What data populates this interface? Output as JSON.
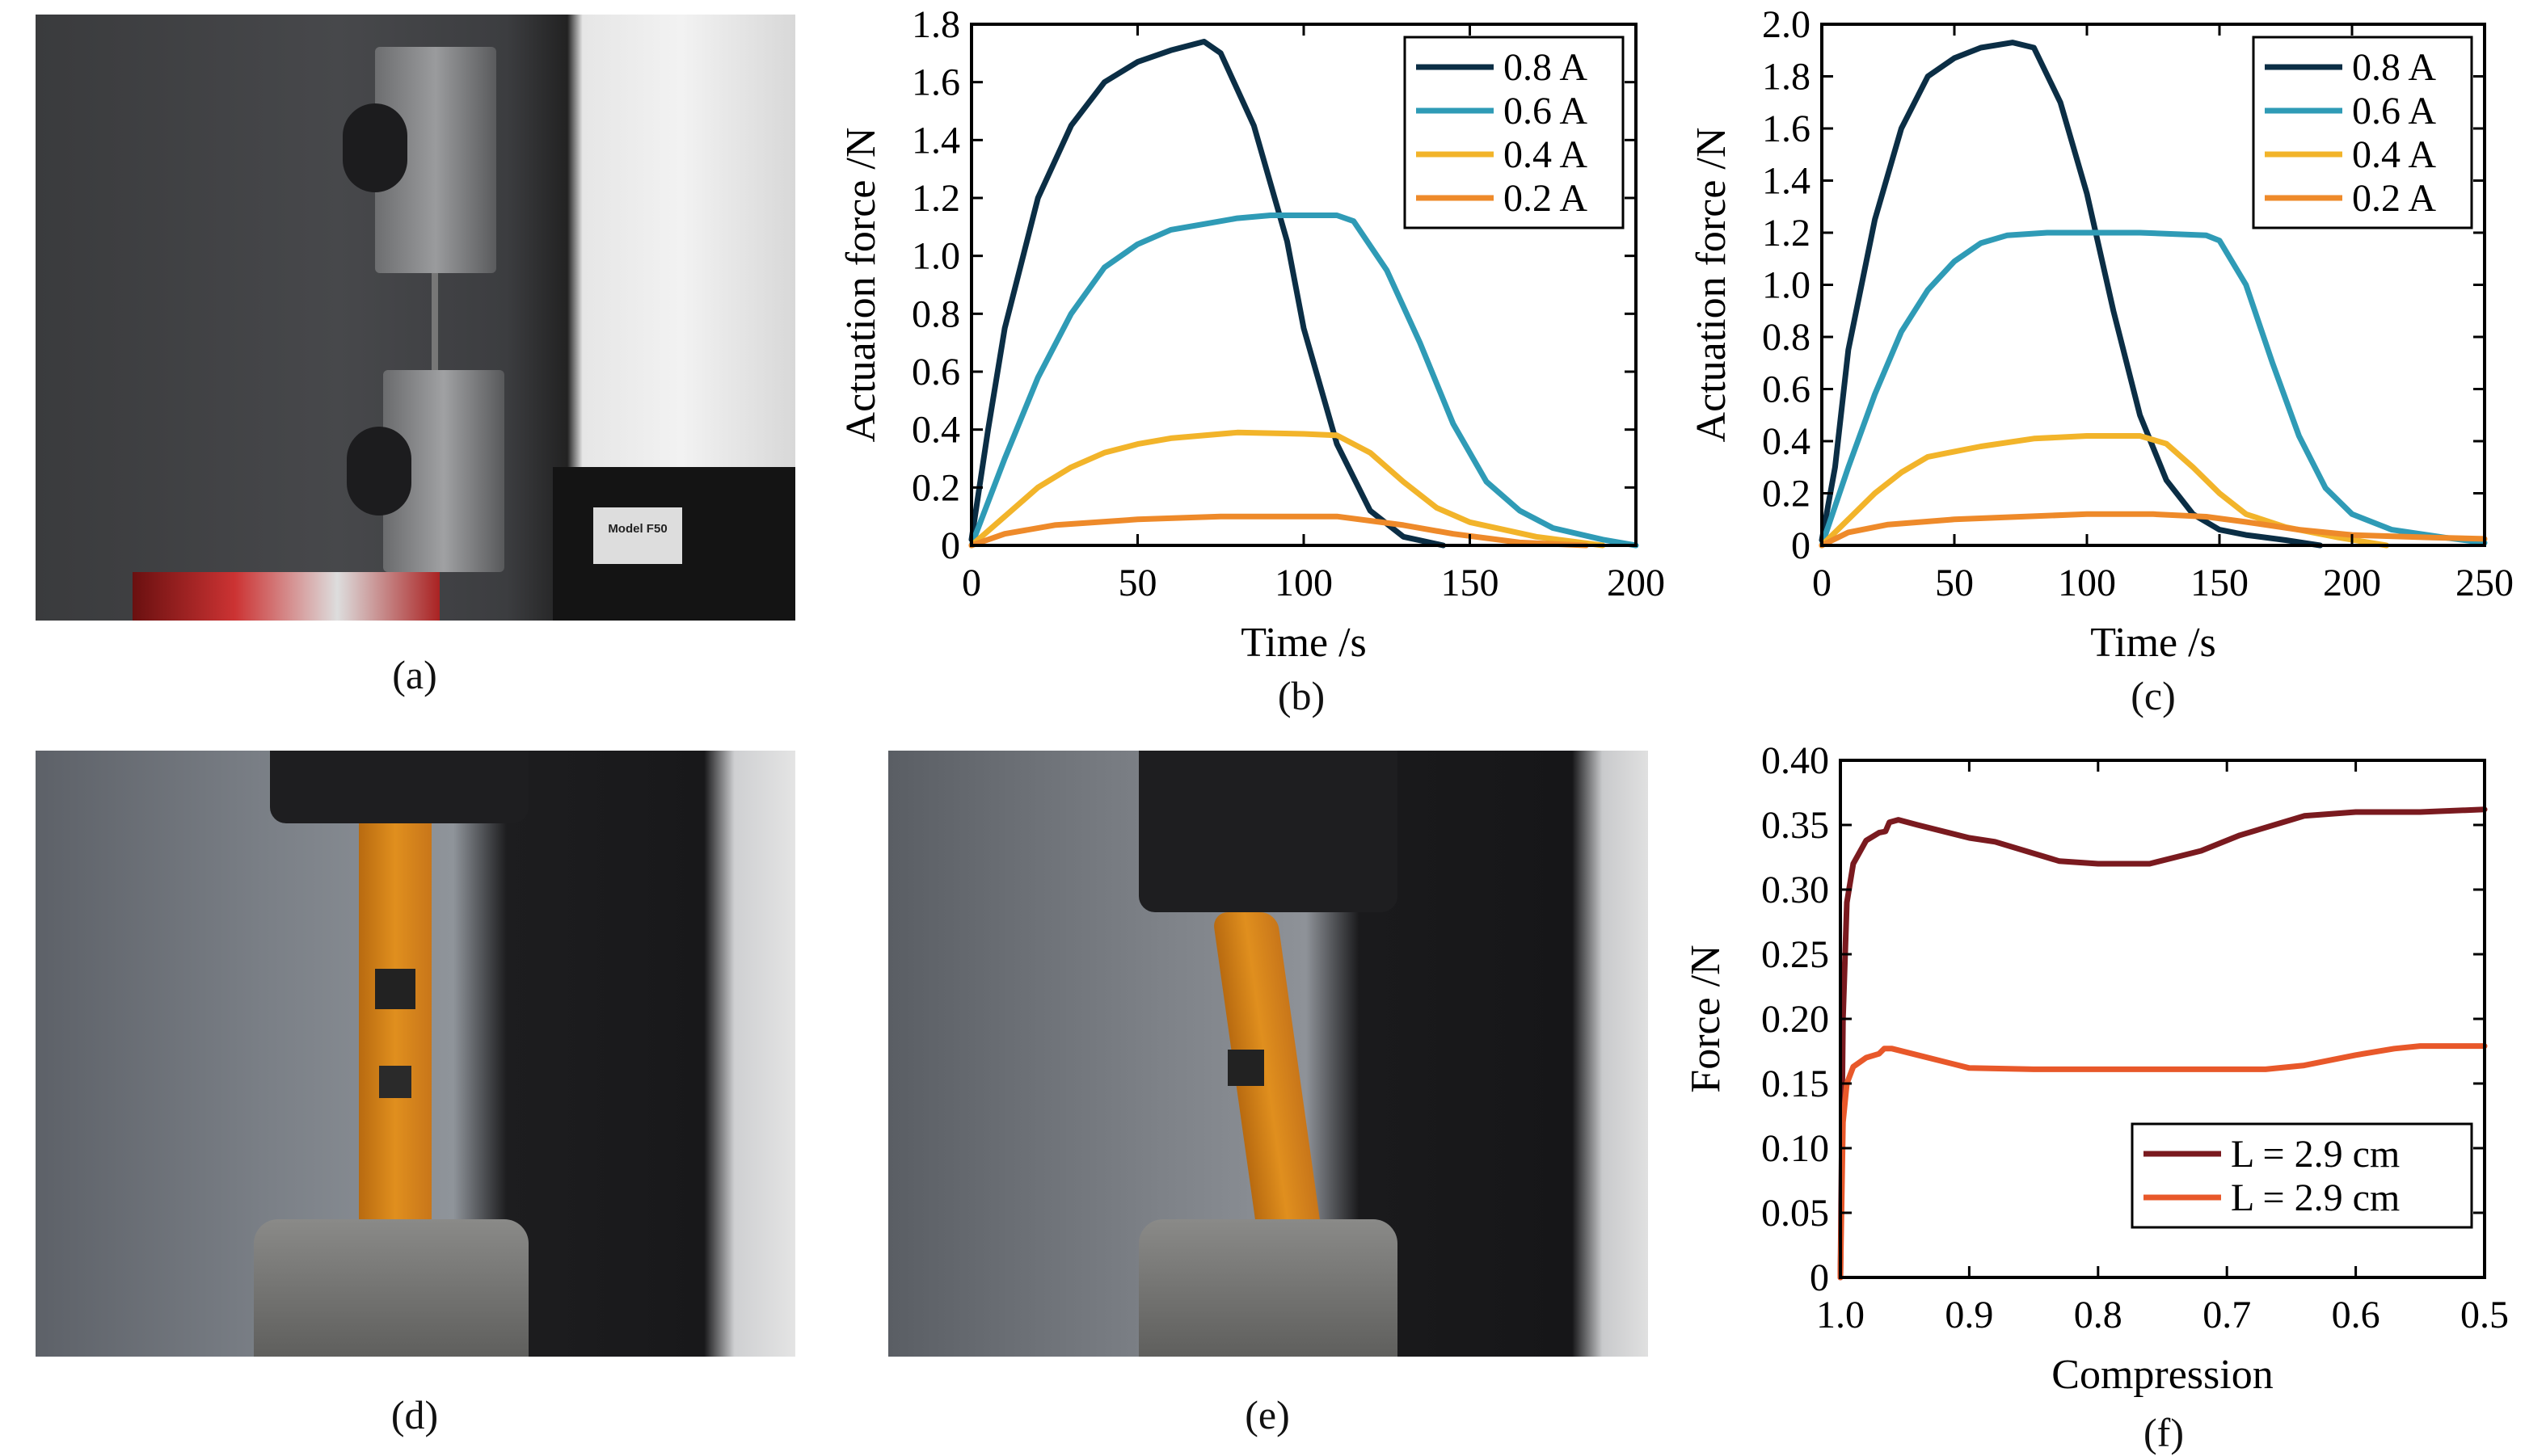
{
  "captions": {
    "a": "(a)",
    "b": "(b)",
    "c": "(c)",
    "d": "(d)",
    "e": "(e)",
    "f": "(f)"
  },
  "photos": {
    "a": {
      "label_plate": "Model F50"
    },
    "d": {},
    "e": {}
  },
  "chart_data": [
    {
      "id": "b",
      "type": "line",
      "xlabel": "Time /s",
      "ylabel": "Actuation force /N",
      "xlim": [
        0,
        200
      ],
      "ylim": [
        0,
        1.8
      ],
      "xticks": [
        "0",
        "50",
        "100",
        "150",
        "200"
      ],
      "xtick_values": [
        0,
        50,
        100,
        150,
        200
      ],
      "yticks": [
        "0",
        "0.2",
        "0.4",
        "0.6",
        "0.8",
        "1.0",
        "1.2",
        "1.4",
        "1.6",
        "1.8"
      ],
      "ytick_values": [
        0,
        0.2,
        0.4,
        0.6,
        0.8,
        1.0,
        1.2,
        1.4,
        1.6,
        1.8
      ],
      "legend": "top-right",
      "series": [
        {
          "name": "0.8 A",
          "color": "#0b2e45",
          "x": [
            0,
            5,
            10,
            20,
            30,
            40,
            50,
            60,
            70,
            75,
            85,
            95,
            100,
            110,
            120,
            130,
            142
          ],
          "y": [
            0.02,
            0.4,
            0.75,
            1.2,
            1.45,
            1.6,
            1.67,
            1.71,
            1.74,
            1.7,
            1.45,
            1.05,
            0.75,
            0.35,
            0.12,
            0.03,
            0
          ]
        },
        {
          "name": "0.6 A",
          "color": "#2f9bb6",
          "x": [
            0,
            10,
            20,
            30,
            40,
            50,
            60,
            70,
            80,
            90,
            110,
            115,
            125,
            135,
            145,
            155,
            165,
            175,
            190,
            200
          ],
          "y": [
            0,
            0.3,
            0.58,
            0.8,
            0.96,
            1.04,
            1.09,
            1.11,
            1.13,
            1.14,
            1.14,
            1.12,
            0.95,
            0.7,
            0.42,
            0.22,
            0.12,
            0.06,
            0.02,
            0
          ]
        },
        {
          "name": "0.4 A",
          "color": "#f2b42a",
          "x": [
            0,
            10,
            20,
            30,
            40,
            50,
            60,
            80,
            100,
            110,
            120,
            130,
            140,
            150,
            170,
            190
          ],
          "y": [
            0,
            0.1,
            0.2,
            0.27,
            0.32,
            0.35,
            0.37,
            0.39,
            0.385,
            0.38,
            0.32,
            0.22,
            0.13,
            0.08,
            0.03,
            0
          ]
        },
        {
          "name": "0.2 A",
          "color": "#ee8a2a",
          "x": [
            0,
            10,
            25,
            50,
            75,
            110,
            130,
            145,
            165,
            185
          ],
          "y": [
            0,
            0.04,
            0.07,
            0.09,
            0.1,
            0.1,
            0.07,
            0.04,
            0.01,
            0
          ]
        }
      ]
    },
    {
      "id": "c",
      "type": "line",
      "xlabel": "Time /s",
      "ylabel": "Actuation force /N",
      "xlim": [
        0,
        250
      ],
      "ylim": [
        0,
        2.0
      ],
      "xticks": [
        "0",
        "50",
        "100",
        "150",
        "200",
        "250"
      ],
      "xtick_values": [
        0,
        50,
        100,
        150,
        200,
        250
      ],
      "yticks": [
        "0",
        "0.2",
        "0.4",
        "0.6",
        "0.8",
        "1.0",
        "1.2",
        "1.4",
        "1.6",
        "1.8",
        "2.0"
      ],
      "ytick_values": [
        0,
        0.2,
        0.4,
        0.6,
        0.8,
        1.0,
        1.2,
        1.4,
        1.6,
        1.8,
        2.0
      ],
      "legend": "top-right",
      "series": [
        {
          "name": "0.8 A",
          "color": "#0b2e45",
          "x": [
            0,
            5,
            10,
            20,
            30,
            40,
            50,
            60,
            72,
            80,
            90,
            100,
            110,
            120,
            130,
            140,
            150,
            160,
            175,
            188
          ],
          "y": [
            0.02,
            0.3,
            0.75,
            1.25,
            1.6,
            1.8,
            1.87,
            1.91,
            1.93,
            1.91,
            1.7,
            1.35,
            0.9,
            0.5,
            0.25,
            0.12,
            0.06,
            0.04,
            0.02,
            0
          ]
        },
        {
          "name": "0.6 A",
          "color": "#2f9bb6",
          "x": [
            0,
            10,
            20,
            30,
            40,
            50,
            60,
            70,
            85,
            100,
            120,
            145,
            150,
            160,
            170,
            180,
            190,
            200,
            215,
            235,
            250
          ],
          "y": [
            0,
            0.3,
            0.58,
            0.82,
            0.98,
            1.09,
            1.16,
            1.19,
            1.2,
            1.2,
            1.2,
            1.19,
            1.17,
            1.0,
            0.7,
            0.42,
            0.22,
            0.12,
            0.06,
            0.03,
            0.01
          ]
        },
        {
          "name": "0.4 A",
          "color": "#f2b42a",
          "x": [
            0,
            10,
            20,
            30,
            40,
            50,
            60,
            80,
            100,
            120,
            130,
            140,
            150,
            160,
            175,
            195,
            213
          ],
          "y": [
            0,
            0.1,
            0.2,
            0.28,
            0.34,
            0.36,
            0.38,
            0.41,
            0.42,
            0.42,
            0.39,
            0.3,
            0.2,
            0.12,
            0.07,
            0.03,
            0
          ]
        },
        {
          "name": "0.2 A",
          "color": "#ee8a2a",
          "x": [
            0,
            10,
            25,
            50,
            75,
            100,
            125,
            145,
            160,
            180,
            200,
            230,
            250
          ],
          "y": [
            0,
            0.05,
            0.08,
            0.1,
            0.11,
            0.12,
            0.12,
            0.11,
            0.09,
            0.06,
            0.04,
            0.03,
            0.025
          ]
        }
      ]
    },
    {
      "id": "f",
      "type": "line",
      "xlabel": "Compression",
      "ylabel": "Force /N",
      "xlim": [
        1.0,
        0.5
      ],
      "ylim": [
        0,
        0.4
      ],
      "xticks": [
        "1.0",
        "0.9",
        "0.8",
        "0.7",
        "0.6",
        "0.5"
      ],
      "xtick_values": [
        1.0,
        0.9,
        0.8,
        0.7,
        0.6,
        0.5
      ],
      "yticks": [
        "0",
        "0.05",
        "0.10",
        "0.15",
        "0.20",
        "0.25",
        "0.30",
        "0.35",
        "0.40"
      ],
      "ytick_values": [
        0,
        0.05,
        0.1,
        0.15,
        0.2,
        0.25,
        0.3,
        0.35,
        0.4
      ],
      "legend": "bottom-right",
      "series": [
        {
          "name": "L = 2.9 cm",
          "color": "#7a1a1f",
          "x": [
            1.0,
            0.998,
            0.995,
            0.99,
            0.98,
            0.97,
            0.965,
            0.962,
            0.955,
            0.94,
            0.9,
            0.88,
            0.83,
            0.8,
            0.76,
            0.72,
            0.69,
            0.64,
            0.6,
            0.55,
            0.5
          ],
          "y": [
            0,
            0.2,
            0.29,
            0.32,
            0.338,
            0.344,
            0.345,
            0.352,
            0.354,
            0.35,
            0.34,
            0.337,
            0.322,
            0.32,
            0.32,
            0.33,
            0.342,
            0.357,
            0.36,
            0.36,
            0.362
          ]
        },
        {
          "name": "L = 2.9 cm",
          "color": "#e8582a",
          "x": [
            1.0,
            0.998,
            0.995,
            0.99,
            0.98,
            0.97,
            0.966,
            0.96,
            0.94,
            0.9,
            0.85,
            0.67,
            0.64,
            0.6,
            0.57,
            0.55,
            0.5
          ],
          "y": [
            0,
            0.12,
            0.15,
            0.163,
            0.17,
            0.173,
            0.177,
            0.177,
            0.172,
            0.162,
            0.161,
            0.161,
            0.164,
            0.172,
            0.177,
            0.179,
            0.179
          ]
        }
      ]
    }
  ]
}
